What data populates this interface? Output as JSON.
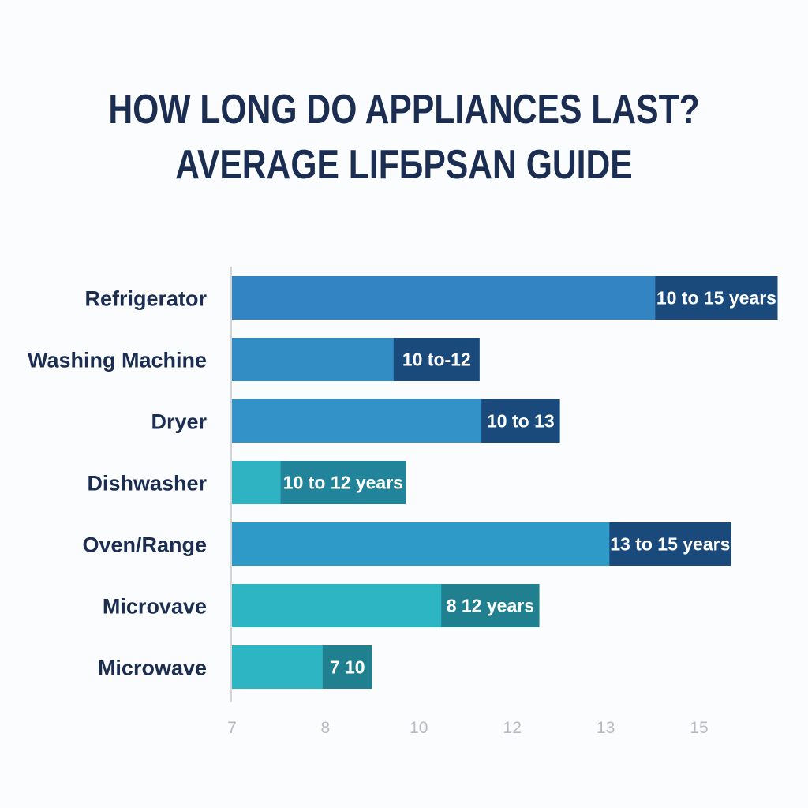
{
  "chart_data": {
    "type": "bar",
    "orientation": "horizontal",
    "title": "HOW LONG DO APPLIANCES LAST?",
    "subtitle": "AVERAGE LIFБPSAN GUIDE",
    "xlabel": "",
    "ylabel": "",
    "x_ticks": [
      "7",
      "8",
      "10",
      "12",
      "13",
      "15"
    ],
    "x_scale_note": "tick labels evenly spaced; bar positions expressed in tick-index units (0 = '7', 5 = '15')",
    "xlim_tick_index": [
      0,
      5.85
    ],
    "grid": false,
    "legend": "none",
    "categories": [
      "Refrigerator",
      "Washing Machine",
      "Dryer",
      "Dishwasher",
      "Oven/Range",
      "Microvave",
      "Microwave"
    ],
    "bars": [
      {
        "category": "Refrigerator",
        "label": "10 to 15 years",
        "end": 5.84,
        "label_start": 4.53,
        "color": "#3384c2",
        "label_color": "#1a4a7c"
      },
      {
        "category": "Washing Machine",
        "label": "10 to-12",
        "end": 2.65,
        "label_start": 1.73,
        "color": "#338dc5",
        "label_color": "#1a4a7c"
      },
      {
        "category": "Dryer",
        "label": "10 to 13",
        "end": 3.51,
        "label_start": 2.67,
        "color": "#3392c8",
        "label_color": "#1a4a7c"
      },
      {
        "category": "Dishwasher",
        "label": "10 to 12 years",
        "end": 1.86,
        "label_start": 0.52,
        "color": "#2fb3c2",
        "label_color": "#22849a"
      },
      {
        "category": "Oven/Range",
        "label": "13 to 15 years",
        "end": 5.34,
        "label_start": 4.04,
        "color": "#2e9ac7",
        "label_color": "#1a4a7c"
      },
      {
        "category": "Microvave",
        "label": "8 12 years",
        "end": 3.29,
        "label_start": 2.24,
        "color": "#2eb5c3",
        "label_color": "#21808f"
      },
      {
        "category": "Microwave",
        "label": "7 10",
        "end": 1.5,
        "label_start": 0.97,
        "color": "#2eb5c3",
        "label_color": "#21808f"
      }
    ]
  },
  "colors": {
    "title": "#1b2e52",
    "category_text": "#1b2e52",
    "tick_text": "#b7bbc1",
    "axis_line": "#d3d5d8",
    "background": "#fbfcfd"
  }
}
